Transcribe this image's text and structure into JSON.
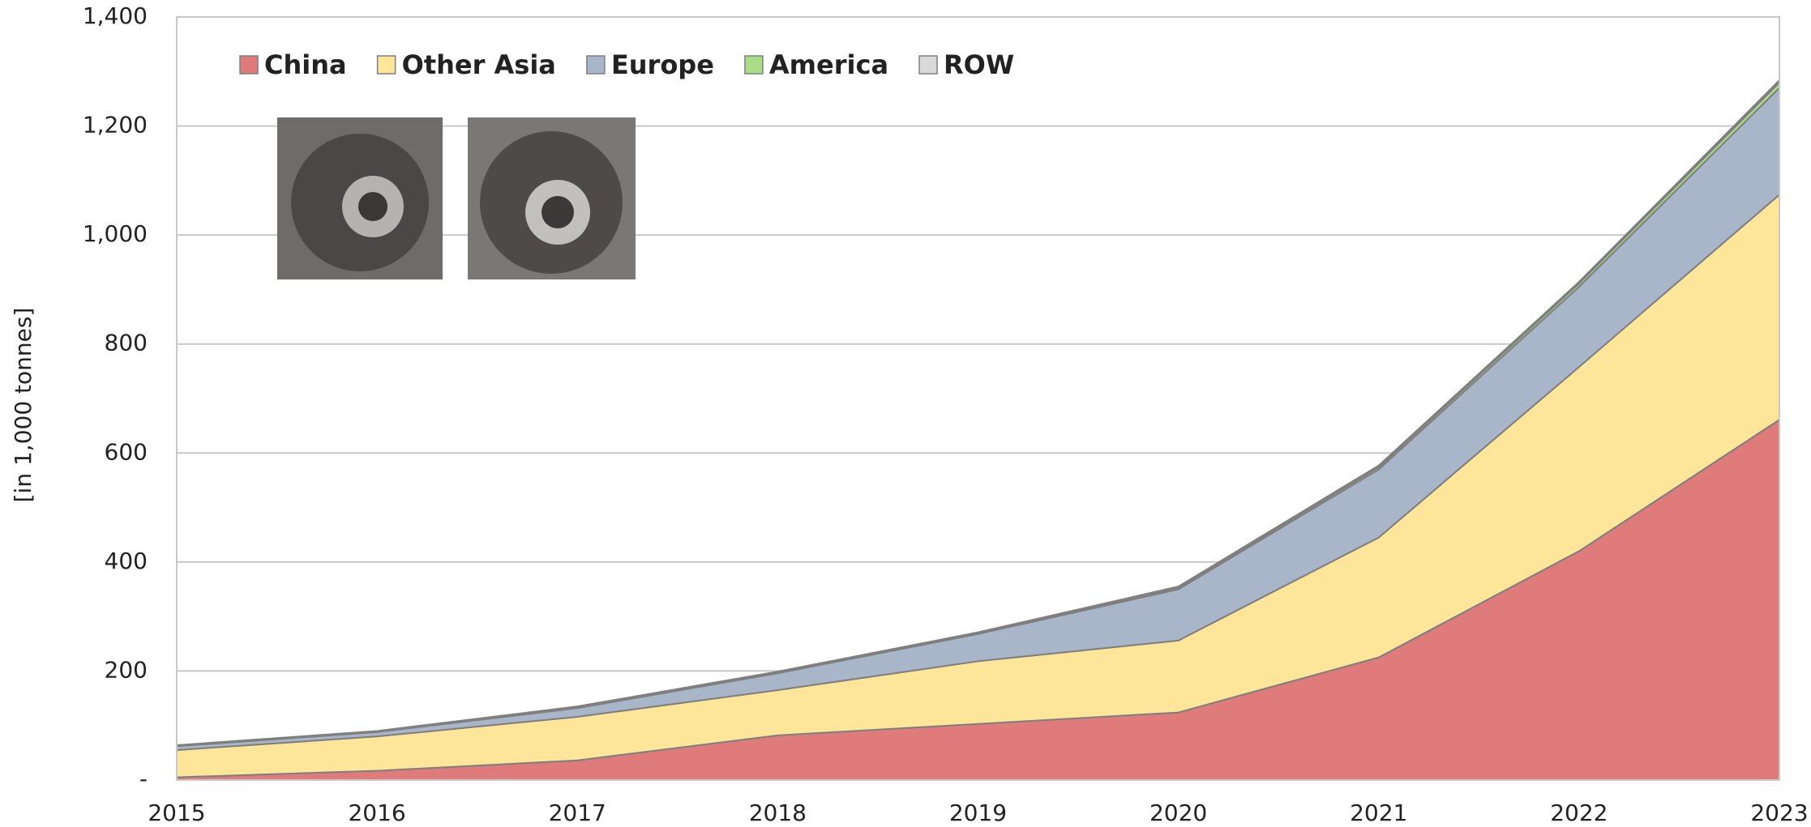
{
  "chart_data": {
    "type": "stacked_area",
    "y_label": "[in 1,000 tonnes]",
    "categories": [
      "2015",
      "2016",
      "2017",
      "2018",
      "2019",
      "2020",
      "2021",
      "2022",
      "2023"
    ],
    "series": [
      {
        "name": "China",
        "color": "#e07b7b",
        "values": [
          5,
          17,
          36,
          82,
          103,
          124,
          225,
          420,
          661
        ]
      },
      {
        "name": "Other Asia",
        "color": "#fde699",
        "values": [
          50,
          63,
          80,
          83,
          115,
          132,
          220,
          338,
          413
        ]
      },
      {
        "name": "Europe",
        "color": "#a9b5c8",
        "values": [
          7,
          8,
          16,
          31,
          50,
          94,
          125,
          147,
          196
        ]
      },
      {
        "name": "America",
        "color": "#a9dd86",
        "values": [
          1,
          1,
          2,
          2,
          2,
          3,
          4,
          6,
          10
        ]
      },
      {
        "name": "ROW",
        "color": "#d9d9d9",
        "values": [
          1,
          1,
          1,
          1,
          1,
          2,
          3,
          3,
          4
        ]
      }
    ],
    "ylim": [
      0,
      1400
    ],
    "yticks": [
      {
        "value": 0,
        "label": "-"
      },
      200,
      400,
      600,
      800,
      {
        "value": 1000,
        "label": "1,000"
      },
      {
        "value": 1200,
        "label": "1,200"
      },
      {
        "value": 1400,
        "label": "1,400"
      }
    ],
    "grid": true,
    "legend_position": "top-left"
  }
}
